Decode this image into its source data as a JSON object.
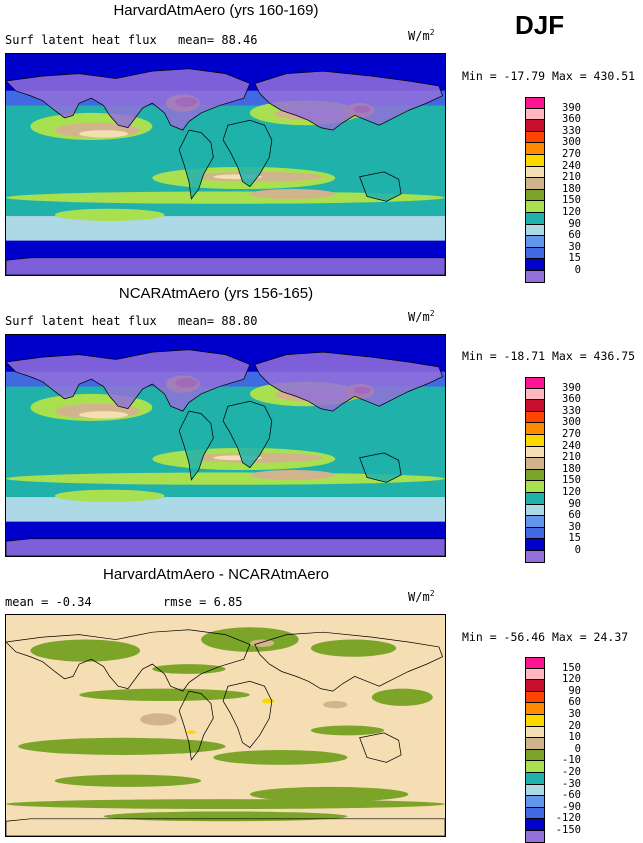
{
  "season": "DJF",
  "panels": [
    {
      "title": "HarvardAtmAero (yrs 160-169)",
      "subtitle_left": "Surf latent heat flux",
      "subtitle_right": "mean=  88.46",
      "units": "W/m",
      "units_exp": "2",
      "minmax": "Min = -17.79  Max = 430.51",
      "variant": "full",
      "colorbar": {
        "labels": [
          "390",
          "360",
          "330",
          "300",
          "270",
          "240",
          "210",
          "180",
          "150",
          "120",
          "90",
          "60",
          "30",
          "15",
          "0"
        ],
        "colors": [
          "#ff1493",
          "#ffb6c1",
          "#c8102e",
          "#ff4500",
          "#ff8c00",
          "#ffd700",
          "#f5deb3",
          "#d2b48c",
          "#7ba428",
          "#a8e050",
          "#20b2aa",
          "#add8e6",
          "#6495ed",
          "#4169e1",
          "#0000cd",
          "#9370db"
        ]
      }
    },
    {
      "title": "NCARAtmAero (yrs 156-165)",
      "subtitle_left": "Surf latent heat flux",
      "subtitle_right": "mean=  88.80",
      "units": "W/m",
      "units_exp": "2",
      "minmax": "Min = -18.71  Max = 436.75",
      "variant": "full",
      "colorbar": {
        "labels": [
          "390",
          "360",
          "330",
          "300",
          "270",
          "240",
          "210",
          "180",
          "150",
          "120",
          "90",
          "60",
          "30",
          "15",
          "0"
        ],
        "colors": [
          "#ff1493",
          "#ffb6c1",
          "#c8102e",
          "#ff4500",
          "#ff8c00",
          "#ffd700",
          "#f5deb3",
          "#d2b48c",
          "#7ba428",
          "#a8e050",
          "#20b2aa",
          "#add8e6",
          "#6495ed",
          "#4169e1",
          "#0000cd",
          "#9370db"
        ]
      }
    },
    {
      "title": "HarvardAtmAero - NCARAtmAero",
      "subtitle_left": "mean =  -0.34",
      "subtitle_right": "rmse =   6.85",
      "units": "W/m",
      "units_exp": "2",
      "minmax": "Min = -56.46  Max =  24.37",
      "variant": "diff",
      "colorbar": {
        "labels": [
          "150",
          "120",
          "90",
          "60",
          "30",
          "20",
          "10",
          "0",
          "-10",
          "-20",
          "-30",
          "-60",
          "-90",
          "-120",
          "-150"
        ],
        "colors": [
          "#ff1493",
          "#ffb6c1",
          "#c8102e",
          "#ff4500",
          "#ff8c00",
          "#ffd700",
          "#f5deb3",
          "#d2b48c",
          "#7ba428",
          "#a8e050",
          "#20b2aa",
          "#add8e6",
          "#6495ed",
          "#4169e1",
          "#0000cd",
          "#9370db"
        ]
      }
    }
  ]
}
